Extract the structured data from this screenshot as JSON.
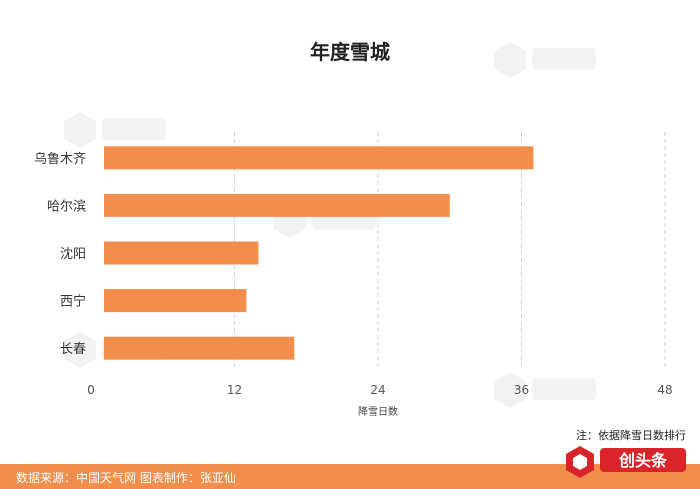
{
  "chart_data": {
    "type": "bar",
    "orientation": "horizontal",
    "title": "年度雪城",
    "categories": [
      "乌鲁木齐",
      "哈尔滨",
      "沈阳",
      "西宁",
      "长春"
    ],
    "values": [
      37,
      30,
      14,
      13,
      17
    ],
    "xlabel": "降雪日数",
    "ylabel": "",
    "xlim": [
      0,
      48
    ],
    "xticks": [
      0,
      12,
      24,
      36,
      48
    ],
    "grid": "vertical dashed",
    "legend": "none",
    "bar_color": "#f28e4c"
  },
  "note": "注：依据降雪日数排行",
  "footer": {
    "source": "数据来源：中国天气网   图表制作：张亚仙",
    "color": "#f28e4c"
  },
  "logo": {
    "name": "创头条",
    "icon": "cube-logo-icon",
    "color": "#d9252a"
  }
}
